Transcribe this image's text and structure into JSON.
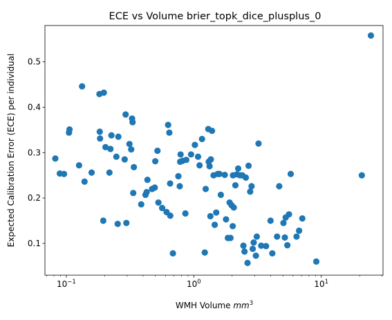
{
  "chart_data": {
    "type": "scatter",
    "title": "ECE vs Volume brier_topk_dice_plusplus_0",
    "xlabel_prefix": "WMH Volume ",
    "xlabel_unit": "mm",
    "xlabel_exp": "3",
    "ylabel": "Expected Calibration Error (ECE) per individual",
    "xscale": "log",
    "xlim": [
      0.068,
      30.5
    ],
    "ylim": [
      0.03,
      0.58
    ],
    "x_ticks": [
      {
        "value": 0.1,
        "base": "10",
        "exp": "−1"
      },
      {
        "value": 1,
        "base": "10",
        "exp": "0"
      },
      {
        "value": 10,
        "base": "10",
        "exp": "1"
      }
    ],
    "y_ticks": [
      {
        "value": 0.1,
        "label": "0.1"
      },
      {
        "value": 0.2,
        "label": "0.2"
      },
      {
        "value": 0.3,
        "label": "0.3"
      },
      {
        "value": 0.4,
        "label": "0.4"
      },
      {
        "value": 0.5,
        "label": "0.5"
      }
    ],
    "grid": false,
    "marker_color": "#1f77b4",
    "points": [
      [
        0.082,
        0.287
      ],
      [
        0.089,
        0.254
      ],
      [
        0.096,
        0.253
      ],
      [
        0.105,
        0.344
      ],
      [
        0.106,
        0.351
      ],
      [
        0.126,
        0.272
      ],
      [
        0.133,
        0.446
      ],
      [
        0.139,
        0.236
      ],
      [
        0.158,
        0.256
      ],
      [
        0.182,
        0.429
      ],
      [
        0.183,
        0.346
      ],
      [
        0.184,
        0.331
      ],
      [
        0.195,
        0.15
      ],
      [
        0.197,
        0.432
      ],
      [
        0.203,
        0.312
      ],
      [
        0.218,
        0.256
      ],
      [
        0.222,
        0.308
      ],
      [
        0.226,
        0.338
      ],
      [
        0.247,
        0.291
      ],
      [
        0.253,
        0.143
      ],
      [
        0.256,
        0.335
      ],
      [
        0.287,
        0.285
      ],
      [
        0.292,
        0.384
      ],
      [
        0.296,
        0.145
      ],
      [
        0.313,
        0.319
      ],
      [
        0.323,
        0.307
      ],
      [
        0.328,
        0.375
      ],
      [
        0.331,
        0.367
      ],
      [
        0.335,
        0.211
      ],
      [
        0.339,
        0.268
      ],
      [
        0.387,
        0.186
      ],
      [
        0.418,
        0.207
      ],
      [
        0.427,
        0.213
      ],
      [
        0.433,
        0.24
      ],
      [
        0.471,
        0.22
      ],
      [
        0.494,
        0.223
      ],
      [
        0.499,
        0.281
      ],
      [
        0.519,
        0.304
      ],
      [
        0.528,
        0.19
      ],
      [
        0.565,
        0.178
      ],
      [
        0.612,
        0.169
      ],
      [
        0.629,
        0.361
      ],
      [
        0.643,
        0.344
      ],
      [
        0.654,
        0.161
      ],
      [
        0.652,
        0.232
      ],
      [
        0.686,
        0.078
      ],
      [
        0.757,
        0.248
      ],
      [
        0.776,
        0.226
      ],
      [
        0.782,
        0.28
      ],
      [
        0.788,
        0.296
      ],
      [
        0.818,
        0.282
      ],
      [
        0.859,
        0.166
      ],
      [
        0.873,
        0.284
      ],
      [
        0.952,
        0.296
      ],
      [
        1.02,
        0.317
      ],
      [
        1.08,
        0.291
      ],
      [
        1.11,
        0.272
      ],
      [
        1.16,
        0.33
      ],
      [
        1.22,
        0.08
      ],
      [
        1.24,
        0.22
      ],
      [
        1.3,
        0.352
      ],
      [
        1.31,
        0.28
      ],
      [
        1.33,
        0.27
      ],
      [
        1.35,
        0.16
      ],
      [
        1.36,
        0.285
      ],
      [
        1.39,
        0.348
      ],
      [
        1.43,
        0.25
      ],
      [
        1.46,
        0.141
      ],
      [
        1.5,
        0.168
      ],
      [
        1.54,
        0.253
      ],
      [
        1.59,
        0.253
      ],
      [
        1.63,
        0.207
      ],
      [
        1.75,
        0.251
      ],
      [
        1.79,
        0.153
      ],
      [
        1.85,
        0.112
      ],
      [
        1.91,
        0.19
      ],
      [
        1.94,
        0.112
      ],
      [
        1.98,
        0.184
      ],
      [
        2.02,
        0.138
      ],
      [
        2.03,
        0.25
      ],
      [
        2.06,
        0.179
      ],
      [
        2.12,
        0.228
      ],
      [
        2.18,
        0.252
      ],
      [
        2.23,
        0.265
      ],
      [
        2.31,
        0.25
      ],
      [
        2.4,
        0.25
      ],
      [
        2.45,
        0.095
      ],
      [
        2.5,
        0.082
      ],
      [
        2.56,
        0.245
      ],
      [
        2.64,
        0.057
      ],
      [
        2.69,
        0.271
      ],
      [
        2.77,
        0.214
      ],
      [
        2.84,
        0.226
      ],
      [
        2.9,
        0.088
      ],
      [
        2.95,
        0.102
      ],
      [
        3.07,
        0.073
      ],
      [
        3.12,
        0.115
      ],
      [
        3.22,
        0.32
      ],
      [
        3.38,
        0.095
      ],
      [
        3.69,
        0.094
      ],
      [
        4.0,
        0.15
      ],
      [
        4.13,
        0.078
      ],
      [
        4.5,
        0.115
      ],
      [
        4.68,
        0.226
      ],
      [
        5.05,
        0.145
      ],
      [
        5.18,
        0.113
      ],
      [
        5.26,
        0.157
      ],
      [
        5.42,
        0.096
      ],
      [
        5.58,
        0.164
      ],
      [
        5.76,
        0.253
      ],
      [
        6.4,
        0.115
      ],
      [
        6.7,
        0.128
      ],
      [
        7.1,
        0.155
      ],
      [
        9.14,
        0.06
      ],
      [
        20.8,
        0.25
      ],
      [
        24.5,
        0.558
      ]
    ]
  }
}
